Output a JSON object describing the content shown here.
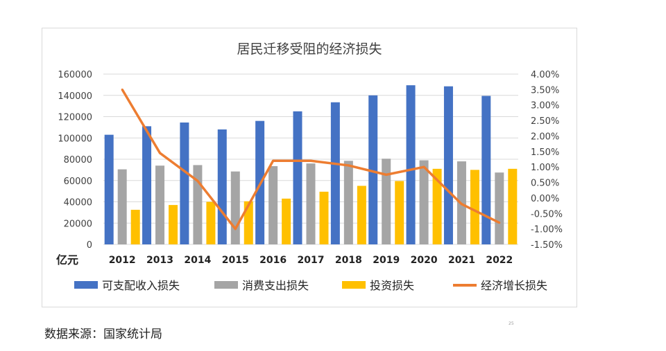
{
  "source_note": "数据来源：国家统计局",
  "page_number": "25",
  "chart_data": {
    "type": "bar",
    "title": "居民迁移受阻的经济损失",
    "categories": [
      "2012",
      "2013",
      "2014",
      "2015",
      "2016",
      "2017",
      "2018",
      "2019",
      "2020",
      "2021",
      "2022"
    ],
    "y_unit_label": "亿元",
    "ylim": [
      0,
      160000
    ],
    "y_ticks": [
      "160000",
      "140000",
      "120000",
      "100000",
      "80000",
      "60000",
      "40000",
      "20000",
      "0"
    ],
    "y2lim": [
      -0.015,
      0.04
    ],
    "y2_ticks": [
      "4.00%",
      "3.50%",
      "3.00%",
      "2.50%",
      "2.00%",
      "1.50%",
      "1.00%",
      "0.50%",
      "0.00%",
      "-0.50%",
      "-1.00%",
      "-1.50%"
    ],
    "grid": true,
    "legend_position": "bottom",
    "series": [
      {
        "name": "可支配收入损失",
        "type": "bar",
        "axis": "left",
        "color": "#4472C4",
        "values": [
          103000,
          111000,
          114500,
          108000,
          116000,
          125000,
          133500,
          140000,
          149500,
          148500,
          139500
        ]
      },
      {
        "name": "消费支出损失",
        "type": "bar",
        "axis": "left",
        "color": "#A5A5A5",
        "values": [
          70500,
          74000,
          74500,
          68500,
          73500,
          76000,
          78500,
          80500,
          79000,
          78000,
          67500
        ]
      },
      {
        "name": "投资损失",
        "type": "bar",
        "axis": "left",
        "color": "#FFC000",
        "values": [
          32500,
          37000,
          40000,
          40500,
          43000,
          49500,
          55000,
          59500,
          71000,
          70000,
          71000
        ]
      },
      {
        "name": "经济增长损失",
        "type": "line",
        "axis": "right",
        "color": "#ED7D31",
        "values": [
          0.035,
          0.0145,
          0.0055,
          -0.01,
          0.012,
          0.012,
          0.0105,
          0.0075,
          0.01,
          -0.002,
          -0.008
        ]
      }
    ]
  }
}
